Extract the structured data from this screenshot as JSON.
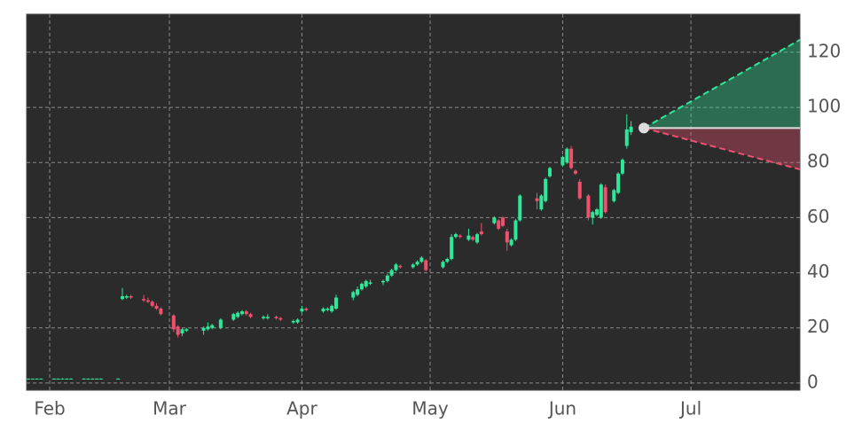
{
  "chart_data": {
    "type": "candlestick",
    "xlim": [
      -5.4,
      175.5
    ],
    "ylim": [
      -2.6,
      133.8
    ],
    "xticks": [
      {
        "value": 0,
        "label": "Feb"
      },
      {
        "value": 28,
        "label": "Mar"
      },
      {
        "value": 59,
        "label": "Apr"
      },
      {
        "value": 89,
        "label": "May"
      },
      {
        "value": 120,
        "label": "Jun"
      },
      {
        "value": 150,
        "label": "Jul"
      }
    ],
    "yticks": [
      0,
      20,
      40,
      60,
      80,
      100,
      120
    ],
    "grid": true,
    "up_color": "#2ee89a",
    "down_color": "#f0506e",
    "candles": [
      [
        -5,
        1.6,
        1.7,
        1.5,
        1.6
      ],
      [
        -4,
        1.6,
        1.7,
        1.5,
        1.6
      ],
      [
        -3,
        1.6,
        1.7,
        1.5,
        1.6
      ],
      [
        -2,
        1.6,
        1.7,
        1.5,
        1.6
      ],
      [
        1,
        1.6,
        1.7,
        1.5,
        1.6
      ],
      [
        2,
        1.6,
        1.7,
        1.5,
        1.6
      ],
      [
        3,
        1.6,
        1.7,
        1.5,
        1.6
      ],
      [
        4,
        1.6,
        1.7,
        1.5,
        1.6
      ],
      [
        5,
        1.6,
        1.7,
        1.5,
        1.6
      ],
      [
        8,
        1.6,
        1.7,
        1.5,
        1.6
      ],
      [
        9,
        1.6,
        1.7,
        1.5,
        1.6
      ],
      [
        10,
        1.6,
        1.7,
        1.5,
        1.6
      ],
      [
        11,
        1.6,
        1.7,
        1.5,
        1.6
      ],
      [
        12,
        1.6,
        1.7,
        1.5,
        1.6
      ],
      [
        16,
        1.6,
        1.7,
        1.5,
        1.6
      ],
      [
        17,
        30.5,
        34.5,
        30,
        31.5
      ],
      [
        18,
        31,
        32,
        30.5,
        31.5
      ],
      [
        19,
        31.5,
        32,
        30.5,
        31
      ],
      [
        22,
        30.5,
        32,
        29.5,
        30
      ],
      [
        23,
        30,
        31,
        29,
        29.5
      ],
      [
        24,
        29.5,
        30,
        27.5,
        28
      ],
      [
        25,
        28,
        29,
        26.5,
        27
      ],
      [
        26,
        27,
        27.5,
        24.5,
        25
      ],
      [
        29,
        24.5,
        25,
        18.5,
        19.5
      ],
      [
        30,
        20.5,
        21,
        16.5,
        17.5
      ],
      [
        31,
        18,
        20,
        17,
        19.5
      ],
      [
        32,
        19,
        20,
        18.5,
        19.5
      ],
      [
        36,
        19,
        20.5,
        17.5,
        20
      ],
      [
        37,
        19.5,
        22,
        19,
        20.5
      ],
      [
        38,
        20,
        21.5,
        19.5,
        21
      ],
      [
        40,
        20,
        23.5,
        19.5,
        23
      ],
      [
        43,
        23,
        25.5,
        22.5,
        25
      ],
      [
        44,
        24,
        26,
        23.5,
        25.5
      ],
      [
        45,
        25,
        26.5,
        24.5,
        26
      ],
      [
        46,
        26,
        26.5,
        24.5,
        25
      ],
      [
        47,
        25,
        25.5,
        23.5,
        24
      ],
      [
        50,
        23.5,
        24.5,
        23,
        24
      ],
      [
        51,
        23.5,
        25,
        23,
        24
      ],
      [
        53,
        24,
        24.5,
        23,
        23.5
      ],
      [
        54,
        23.5,
        24,
        22.5,
        23
      ],
      [
        57,
        22,
        23,
        21.5,
        22.5
      ],
      [
        58,
        22,
        23.5,
        21.5,
        23
      ],
      [
        59,
        26,
        28,
        25.5,
        27
      ],
      [
        60,
        27,
        27.5,
        26,
        26.5
      ],
      [
        64,
        26,
        27.5,
        25.5,
        27
      ],
      [
        65,
        26.5,
        27.5,
        26,
        27
      ],
      [
        66,
        26,
        28.5,
        25.5,
        28
      ],
      [
        67,
        27,
        32,
        26.5,
        31
      ],
      [
        71,
        31,
        33.5,
        30,
        33
      ],
      [
        72,
        32,
        35,
        31.5,
        34
      ],
      [
        73,
        34,
        36.5,
        33.5,
        36
      ],
      [
        74,
        35,
        37.5,
        34.5,
        37
      ],
      [
        75,
        36,
        37.5,
        35.5,
        36.5
      ],
      [
        78,
        36.5,
        37.5,
        35.5,
        37
      ],
      [
        79,
        37,
        39.5,
        36.5,
        39
      ],
      [
        80,
        39,
        41.5,
        38.5,
        41
      ],
      [
        81,
        41,
        43.5,
        40.5,
        43
      ],
      [
        82,
        42.5,
        43,
        41.5,
        42
      ],
      [
        85,
        42,
        43.5,
        41.5,
        43
      ],
      [
        86,
        43,
        44.5,
        42.5,
        44
      ],
      [
        87,
        44,
        46,
        43.5,
        45.5
      ],
      [
        88,
        44.5,
        45,
        40.5,
        41
      ],
      [
        92,
        42,
        44.5,
        41.5,
        44
      ],
      [
        93,
        44,
        45.5,
        43.5,
        45
      ],
      [
        94,
        45,
        54,
        44.5,
        53
      ],
      [
        95,
        53,
        54.5,
        52.5,
        54
      ],
      [
        96,
        53.5,
        54,
        52.5,
        53
      ],
      [
        98,
        52,
        56,
        51.5,
        53.5
      ],
      [
        99,
        53,
        53.5,
        51.5,
        52
      ],
      [
        100,
        51,
        54.5,
        50.5,
        54
      ],
      [
        101,
        55,
        58,
        53.5,
        54
      ],
      [
        104,
        58,
        60.5,
        57.5,
        60
      ],
      [
        105,
        59,
        59.5,
        55.5,
        56
      ],
      [
        106,
        60,
        60.5,
        56.5,
        57
      ],
      [
        107,
        55,
        56,
        48,
        51
      ],
      [
        108,
        50,
        52.5,
        49.5,
        52
      ],
      [
        109,
        52,
        59.5,
        51.5,
        59
      ],
      [
        110,
        59,
        68.5,
        58.5,
        68
      ],
      [
        114,
        67,
        69,
        63,
        66
      ],
      [
        115,
        63,
        68.5,
        62.5,
        68
      ],
      [
        116,
        66,
        74.5,
        65.5,
        74
      ],
      [
        117,
        75,
        78.5,
        74.5,
        78
      ],
      [
        120,
        79,
        82.5,
        78.5,
        82
      ],
      [
        121,
        80,
        85.5,
        79.5,
        85
      ],
      [
        122,
        85,
        86,
        77.5,
        78
      ],
      [
        123,
        77,
        77.5,
        75.5,
        76
      ],
      [
        124,
        73,
        74,
        66.5,
        67
      ],
      [
        126,
        68,
        68.5,
        59,
        60
      ],
      [
        127,
        60,
        62.5,
        57.5,
        62
      ],
      [
        128,
        61,
        63.5,
        60.5,
        63
      ],
      [
        129,
        60,
        72.5,
        59.5,
        72
      ],
      [
        130,
        71,
        72,
        61.5,
        62
      ],
      [
        132,
        66,
        70.5,
        65.5,
        70
      ],
      [
        133,
        69,
        76.5,
        68.5,
        76
      ],
      [
        134,
        76,
        81.5,
        75.5,
        81
      ],
      [
        135,
        86,
        97.5,
        85,
        92
      ],
      [
        136,
        91,
        95,
        90,
        93
      ]
    ],
    "forecast": {
      "x": [
        139,
        175.5
      ],
      "mid": [
        92.5,
        92.5
      ],
      "upper": [
        92.5,
        124.5
      ],
      "lower": [
        92.5,
        77.5
      ],
      "upper_color": "#2ee89a",
      "lower_color": "#f0506e"
    }
  }
}
